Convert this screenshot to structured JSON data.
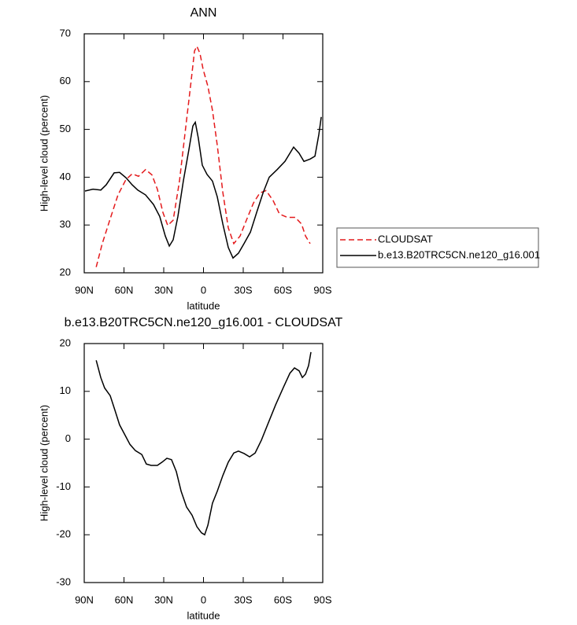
{
  "chart_data": [
    {
      "type": "line",
      "title": "ANN",
      "x_label": "latitude",
      "y_label": "High-level cloud (percent)",
      "xlim": [
        90,
        -90
      ],
      "xticks": [
        {
          "value": 90,
          "label": "90N"
        },
        {
          "value": 60,
          "label": "60N"
        },
        {
          "value": 30,
          "label": "30N"
        },
        0,
        {
          "value": -30,
          "label": "30S"
        },
        {
          "value": -60,
          "label": "60S"
        },
        {
          "value": -90,
          "label": "90S"
        }
      ],
      "ylim": [
        20,
        70
      ],
      "yticks": [
        20,
        30,
        40,
        50,
        60,
        70
      ],
      "legend": "outside-right",
      "series": [
        {
          "name": "CLOUDSAT",
          "color": "#e41a1c",
          "dash": "dashed",
          "x": [
            81,
            76.4,
            70.4,
            64.5,
            58.5,
            53.8,
            49,
            43.7,
            38.9,
            34.8,
            30.6,
            27,
            22.9,
            18.1,
            14,
            9.8,
            6.8,
            5,
            2.7,
            0.3,
            -3.3,
            -6.8,
            -10.4,
            -14.6,
            -18.7,
            -22.9,
            -27.6,
            -32.4,
            -37.7,
            -42.5,
            -47.2,
            -52.6,
            -57.3,
            -63.3,
            -69.2,
            -74,
            -77,
            -80.5
          ],
          "values": [
            21.2,
            26.1,
            31.3,
            36.3,
            39.5,
            40.7,
            40.2,
            41.6,
            40.5,
            37.5,
            32.6,
            29.9,
            31,
            39.2,
            49,
            59,
            66.4,
            67.4,
            65.9,
            62.6,
            59,
            54,
            46.7,
            36.8,
            29.4,
            26.1,
            27.7,
            31,
            34.6,
            36.7,
            37.2,
            35.1,
            32.3,
            31.6,
            31.6,
            30.2,
            27.7,
            26.1
          ]
        },
        {
          "name": "b.e13.B20TRC5CN.ne120_g16.001",
          "color": "#000000",
          "dash": "solid",
          "x": [
            89.4,
            83.4,
            77.5,
            73.4,
            67.4,
            63.3,
            58.5,
            53.8,
            49.6,
            43.7,
            37.7,
            33,
            28.8,
            25.8,
            22.9,
            19.3,
            15.2,
            11,
            8,
            6.2,
            3.9,
            0.9,
            -2.7,
            -6.8,
            -10.4,
            -14.6,
            -18.7,
            -22.3,
            -26.4,
            -30.6,
            -35.4,
            -40.1,
            -44.9,
            -49.6,
            -55.6,
            -61.5,
            -68,
            -72.2,
            -75.8,
            -80.5,
            -84.1,
            -87.1,
            -88.9
          ],
          "values": [
            37.1,
            37.5,
            37.3,
            38.4,
            40.9,
            41,
            39.9,
            38.4,
            37.3,
            36.3,
            34.3,
            31.8,
            27.7,
            25.6,
            26.9,
            31.8,
            39.2,
            45.8,
            50.7,
            51.5,
            48.2,
            42.5,
            40.6,
            39.2,
            35.9,
            30.2,
            25.3,
            23.1,
            24.1,
            26.1,
            28.5,
            32.6,
            36.7,
            40,
            41.6,
            43.3,
            46.3,
            45,
            43.3,
            43.8,
            44.4,
            49,
            52.6
          ]
        }
      ]
    },
    {
      "type": "line",
      "title": "b.e13.B20TRC5CN.ne120_g16.001 - CLOUDSAT",
      "x_label": "latitude",
      "y_label": "High-level cloud (percent)",
      "xlim": [
        90,
        -90
      ],
      "xticks": [
        {
          "value": 90,
          "label": "90N"
        },
        {
          "value": 60,
          "label": "60N"
        },
        {
          "value": 30,
          "label": "30N"
        },
        0,
        {
          "value": -30,
          "label": "30S"
        },
        {
          "value": -60,
          "label": "60S"
        },
        {
          "value": -90,
          "label": "90S"
        }
      ],
      "ylim": [
        -30,
        20
      ],
      "yticks": [
        -30,
        -20,
        -10,
        0,
        10,
        20
      ],
      "color": "#000000",
      "x": [
        81,
        77.5,
        74.6,
        70.4,
        66.8,
        63.3,
        59.7,
        55.5,
        51.4,
        46.6,
        43.1,
        39.5,
        34.8,
        31.2,
        27.6,
        24.1,
        20.5,
        16.9,
        12.8,
        8.6,
        5,
        1.5,
        -0.9,
        -3.3,
        -6.8,
        -10.4,
        -14.6,
        -18.7,
        -22.9,
        -26.4,
        -30.6,
        -34.8,
        -39,
        -43.7,
        -48.5,
        -54.5,
        -60.4,
        -65.2,
        -68.7,
        -72.2,
        -74.6,
        -77,
        -79.3,
        -81.1
      ],
      "values": [
        16.5,
        12.9,
        10.7,
        9.1,
        6,
        3,
        1.1,
        -1.1,
        -2.4,
        -3.2,
        -5.2,
        -5.5,
        -5.5,
        -4.8,
        -4,
        -4.3,
        -6.8,
        -10.9,
        -14.2,
        -15.9,
        -18.3,
        -19.6,
        -20,
        -18,
        -13.4,
        -10.9,
        -7.6,
        -4.8,
        -2.9,
        -2.5,
        -3,
        -3.7,
        -2.9,
        -0.2,
        3.1,
        7.2,
        10.9,
        13.8,
        14.9,
        14.3,
        12.9,
        13.6,
        15.4,
        18.2
      ]
    }
  ]
}
